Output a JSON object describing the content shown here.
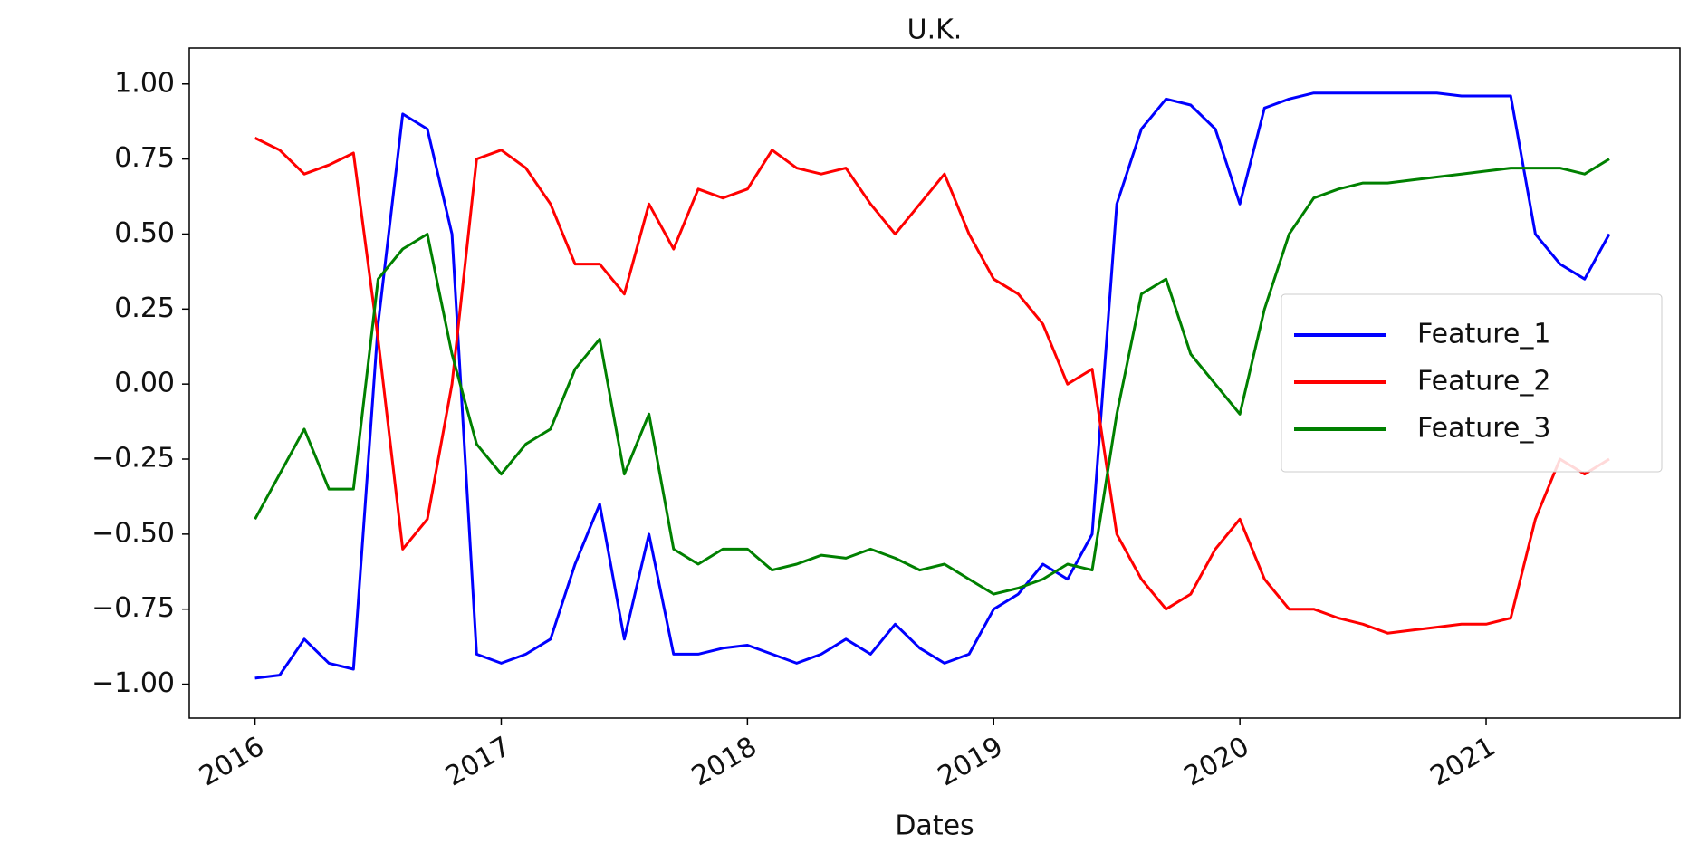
{
  "chart_data": {
    "type": "line",
    "title": "U.K.",
    "xlabel": "Dates",
    "x": [
      2016.0,
      2016.1,
      2016.2,
      2016.3,
      2016.4,
      2016.5,
      2016.6,
      2016.7,
      2016.8,
      2016.9,
      2017.0,
      2017.1,
      2017.2,
      2017.3,
      2017.4,
      2017.5,
      2017.6,
      2017.7,
      2017.8,
      2017.9,
      2018.0,
      2018.1,
      2018.2,
      2018.3,
      2018.4,
      2018.5,
      2018.6,
      2018.7,
      2018.8,
      2018.9,
      2019.0,
      2019.1,
      2019.2,
      2019.3,
      2019.4,
      2019.5,
      2019.6,
      2019.7,
      2019.8,
      2019.9,
      2020.0,
      2020.1,
      2020.2,
      2020.3,
      2020.4,
      2020.5,
      2020.6,
      2020.7,
      2020.8,
      2020.9,
      2021.0,
      2021.1,
      2021.2,
      2021.3,
      2021.4,
      2021.5
    ],
    "series": [
      {
        "name": "Feature_1",
        "color": "#0000ff",
        "values": [
          -0.98,
          -0.97,
          -0.85,
          -0.93,
          -0.95,
          0.2,
          0.9,
          0.85,
          0.5,
          -0.9,
          -0.93,
          -0.9,
          -0.85,
          -0.6,
          -0.4,
          -0.85,
          -0.5,
          -0.9,
          -0.9,
          -0.88,
          -0.87,
          -0.9,
          -0.93,
          -0.9,
          -0.85,
          -0.9,
          -0.8,
          -0.88,
          -0.93,
          -0.9,
          -0.75,
          -0.7,
          -0.6,
          -0.65,
          -0.5,
          0.6,
          0.85,
          0.95,
          0.93,
          0.85,
          0.6,
          0.92,
          0.95,
          0.97,
          0.97,
          0.97,
          0.97,
          0.97,
          0.97,
          0.96,
          0.96,
          0.96,
          0.5,
          0.4,
          0.35,
          0.5
        ]
      },
      {
        "name": "Feature_2",
        "color": "#ff0000",
        "values": [
          0.82,
          0.78,
          0.7,
          0.73,
          0.77,
          0.15,
          -0.55,
          -0.45,
          0.0,
          0.75,
          0.78,
          0.72,
          0.6,
          0.4,
          0.4,
          0.3,
          0.6,
          0.45,
          0.65,
          0.62,
          0.65,
          0.78,
          0.72,
          0.7,
          0.72,
          0.6,
          0.5,
          0.6,
          0.7,
          0.5,
          0.35,
          0.3,
          0.2,
          0.0,
          0.05,
          -0.5,
          -0.65,
          -0.75,
          -0.7,
          -0.55,
          -0.45,
          -0.65,
          -0.75,
          -0.75,
          -0.78,
          -0.8,
          -0.83,
          -0.82,
          -0.81,
          -0.8,
          -0.8,
          -0.78,
          -0.45,
          -0.25,
          -0.3,
          -0.25
        ]
      },
      {
        "name": "Feature_3",
        "color": "#008000",
        "values": [
          -0.45,
          -0.3,
          -0.15,
          -0.35,
          -0.35,
          0.35,
          0.45,
          0.5,
          0.1,
          -0.2,
          -0.3,
          -0.2,
          -0.15,
          0.05,
          0.15,
          -0.3,
          -0.1,
          -0.55,
          -0.6,
          -0.55,
          -0.55,
          -0.62,
          -0.6,
          -0.57,
          -0.58,
          -0.55,
          -0.58,
          -0.62,
          -0.6,
          -0.65,
          -0.7,
          -0.68,
          -0.65,
          -0.6,
          -0.62,
          -0.1,
          0.3,
          0.35,
          0.1,
          0.0,
          -0.1,
          0.25,
          0.5,
          0.62,
          0.65,
          0.67,
          0.67,
          0.68,
          0.69,
          0.7,
          0.71,
          0.72,
          0.72,
          0.72,
          0.7,
          0.75
        ]
      }
    ],
    "xlim": [
      2015.733,
      2021.787
    ],
    "xticks": [
      2016,
      2017,
      2018,
      2019,
      2020,
      2021
    ],
    "ylim": [
      -1.113,
      1.12
    ],
    "yticks": [
      {
        "value": -1,
        "label": "−1.00"
      },
      {
        "value": -0.75,
        "label": "−0.75"
      },
      {
        "value": -0.5,
        "label": "−0.50"
      },
      {
        "value": -0.25,
        "label": "−0.25"
      },
      {
        "value": 0,
        "label": "0.00"
      },
      {
        "value": 0.25,
        "label": "0.25"
      },
      {
        "value": 0.5,
        "label": "0.50"
      },
      {
        "value": 0.75,
        "label": "0.75"
      },
      {
        "value": 1,
        "label": "1.00"
      }
    ],
    "legend": "center right",
    "grid": false
  }
}
